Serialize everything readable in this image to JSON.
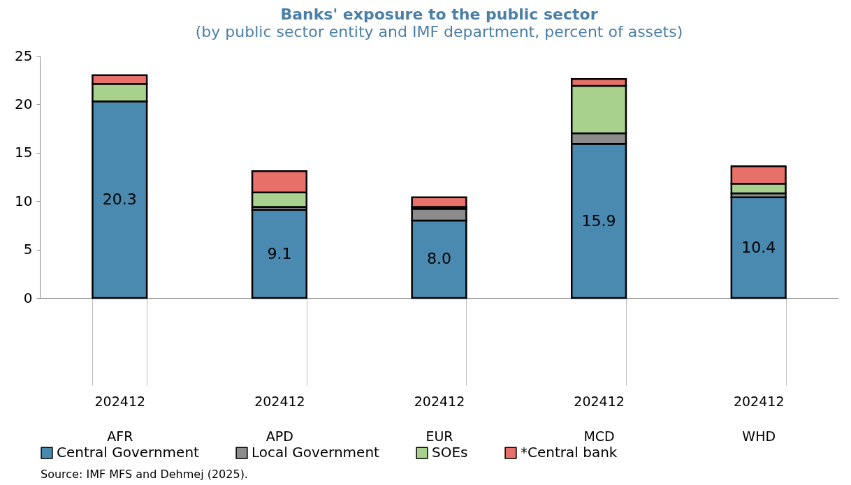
{
  "chart_data": {
    "type": "bar",
    "title": "Banks' exposure to the public sector",
    "subtitle": "(by public sector entity and IMF department, percent of assets)",
    "categories": [
      "202412\nAFR",
      "202412\nAPD",
      "202412\nEUR",
      "202412\nMCD",
      "202412\nWHD"
    ],
    "stacked": true,
    "series": [
      {
        "name": "Central Government",
        "color": "#4a8ab0",
        "values": [
          20.3,
          9.1,
          8.0,
          15.9,
          10.4
        ],
        "value_labels": [
          "20.3",
          "9.1",
          "8.0",
          "15.9",
          "10.4"
        ]
      },
      {
        "name": "Local Government",
        "color": "#8c8c8c",
        "values": [
          null,
          0.3,
          1.2,
          1.1,
          0.4
        ]
      },
      {
        "name": "SOEs",
        "color": "#a9d18e",
        "values": [
          1.8,
          1.5,
          0.2,
          4.9,
          1.0
        ]
      },
      {
        "name": "*Central bank",
        "color": "#e8706a",
        "values": [
          0.9,
          2.2,
          1.0,
          0.7,
          1.8
        ]
      }
    ],
    "ylim": [
      0,
      25
    ],
    "yticks": [
      0,
      5,
      10,
      15,
      20,
      25
    ],
    "grid": false,
    "legend": "bottom",
    "annotations": [
      "Source: IMF MFS and Dehmej (2025)."
    ]
  }
}
